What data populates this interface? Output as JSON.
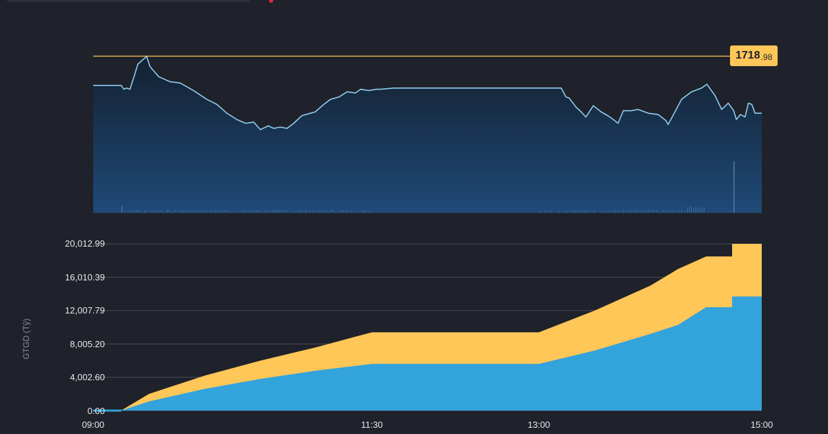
{
  "chart_data": [
    {
      "type": "area",
      "title": "",
      "description": "Intraday index price line with volume bars",
      "xlabel": "",
      "ylabel": "",
      "x_range": [
        "09:00",
        "15:00"
      ],
      "reference_line": {
        "value": 1718.98,
        "label_int": "1718",
        "label_dec": ".98",
        "color": "#ffc658"
      },
      "series": [
        {
          "name": "price",
          "color": "#8ecdf0",
          "points_time_relative": [
            [
              0.0,
              0.77
            ],
            [
              0.042,
              0.77
            ],
            [
              0.046,
              0.74
            ],
            [
              0.05,
              0.75
            ],
            [
              0.055,
              0.74
            ],
            [
              0.06,
              0.82
            ],
            [
              0.067,
              0.94
            ],
            [
              0.08,
              1.0
            ],
            [
              0.085,
              0.92
            ],
            [
              0.098,
              0.84
            ],
            [
              0.115,
              0.8
            ],
            [
              0.13,
              0.79
            ],
            [
              0.15,
              0.73
            ],
            [
              0.17,
              0.66
            ],
            [
              0.185,
              0.62
            ],
            [
              0.2,
              0.55
            ],
            [
              0.215,
              0.5
            ],
            [
              0.228,
              0.47
            ],
            [
              0.24,
              0.48
            ],
            [
              0.25,
              0.42
            ],
            [
              0.262,
              0.45
            ],
            [
              0.27,
              0.43
            ],
            [
              0.28,
              0.44
            ],
            [
              0.29,
              0.43
            ],
            [
              0.3,
              0.47
            ],
            [
              0.312,
              0.53
            ],
            [
              0.325,
              0.55
            ],
            [
              0.332,
              0.56
            ],
            [
              0.345,
              0.62
            ],
            [
              0.355,
              0.66
            ],
            [
              0.368,
              0.68
            ],
            [
              0.38,
              0.72
            ],
            [
              0.392,
              0.71
            ],
            [
              0.4,
              0.74
            ],
            [
              0.412,
              0.73
            ],
            [
              0.424,
              0.74
            ],
            [
              0.43,
              0.74
            ],
            [
              0.45,
              0.75
            ],
            [
              0.7,
              0.75
            ],
            [
              0.707,
              0.68
            ],
            [
              0.712,
              0.67
            ],
            [
              0.722,
              0.6
            ],
            [
              0.73,
              0.56
            ],
            [
              0.737,
              0.52
            ],
            [
              0.748,
              0.61
            ],
            [
              0.76,
              0.56
            ],
            [
              0.77,
              0.53
            ],
            [
              0.778,
              0.5
            ],
            [
              0.785,
              0.47
            ],
            [
              0.793,
              0.57
            ],
            [
              0.805,
              0.57
            ],
            [
              0.815,
              0.58
            ],
            [
              0.83,
              0.55
            ],
            [
              0.845,
              0.54
            ],
            [
              0.857,
              0.49
            ],
            [
              0.86,
              0.46
            ],
            [
              0.868,
              0.54
            ],
            [
              0.88,
              0.66
            ],
            [
              0.895,
              0.72
            ],
            [
              0.91,
              0.75
            ],
            [
              0.918,
              0.78
            ],
            [
              0.93,
              0.69
            ],
            [
              0.94,
              0.58
            ],
            [
              0.95,
              0.63
            ],
            [
              0.958,
              0.57
            ],
            [
              0.962,
              0.5
            ],
            [
              0.968,
              0.54
            ],
            [
              0.975,
              0.52
            ],
            [
              0.98,
              0.63
            ],
            [
              0.985,
              0.62
            ],
            [
              0.99,
              0.55
            ],
            [
              1.0,
              0.55
            ]
          ]
        },
        {
          "name": "volume",
          "color": "#4a7aa8",
          "note": "small bars near bottom; spike near 14:45"
        }
      ]
    },
    {
      "type": "area",
      "title": "",
      "xlabel": "",
      "ylabel": "GTGD (Tỷ)",
      "ylim": [
        0,
        20012.99
      ],
      "yticks": [
        "20,012.99",
        "16,010.39",
        "12,007.79",
        "8,005.20",
        "4,002.60",
        "0.00"
      ],
      "ytick_values": [
        20012.99,
        16010.39,
        12007.79,
        8005.2,
        4002.6,
        0.0
      ],
      "xticks": [
        "09:00",
        "11:30",
        "13:00",
        "15:00"
      ],
      "x": [
        "09:00",
        "09:15",
        "09:30",
        "10:00",
        "10:30",
        "11:00",
        "11:30",
        "13:00",
        "13:30",
        "14:00",
        "14:15",
        "14:30",
        "14:45",
        "15:00"
      ],
      "series": [
        {
          "name": "total (stacked top)",
          "color": "#ffc658",
          "values": [
            0,
            0,
            2000,
            4200,
            6000,
            7600,
            9400,
            9400,
            12000,
            15000,
            17000,
            18500,
            18500,
            20013
          ]
        },
        {
          "name": "base (blue)",
          "color": "#33a3dc",
          "values": [
            0,
            0,
            1100,
            2600,
            3800,
            4800,
            5600,
            5600,
            7200,
            9200,
            10300,
            12400,
            12400,
            13700
          ]
        }
      ],
      "grid": true,
      "legend": "none"
    }
  ],
  "price_chart": {
    "ref_label_int": "1718",
    "ref_label_dec": ".98"
  },
  "value_chart": {
    "ylabel": "GTGD (Tỷ)",
    "yticks": [
      "20,012.99",
      "16,010.39",
      "12,007.79",
      "8,005.20",
      "4,002.60",
      "0.00"
    ],
    "xticks": [
      "09:00",
      "11:30",
      "13:00",
      "15:00"
    ]
  },
  "colors": {
    "background": "#1f222a",
    "price_line": "#8ecdf0",
    "price_fill_top": "#14202f",
    "price_fill_bottom": "#1f4a78",
    "ref_line": "#ffc658",
    "stack_top": "#ffc658",
    "stack_base": "#33a3dc",
    "grid": "#4a4d55"
  }
}
